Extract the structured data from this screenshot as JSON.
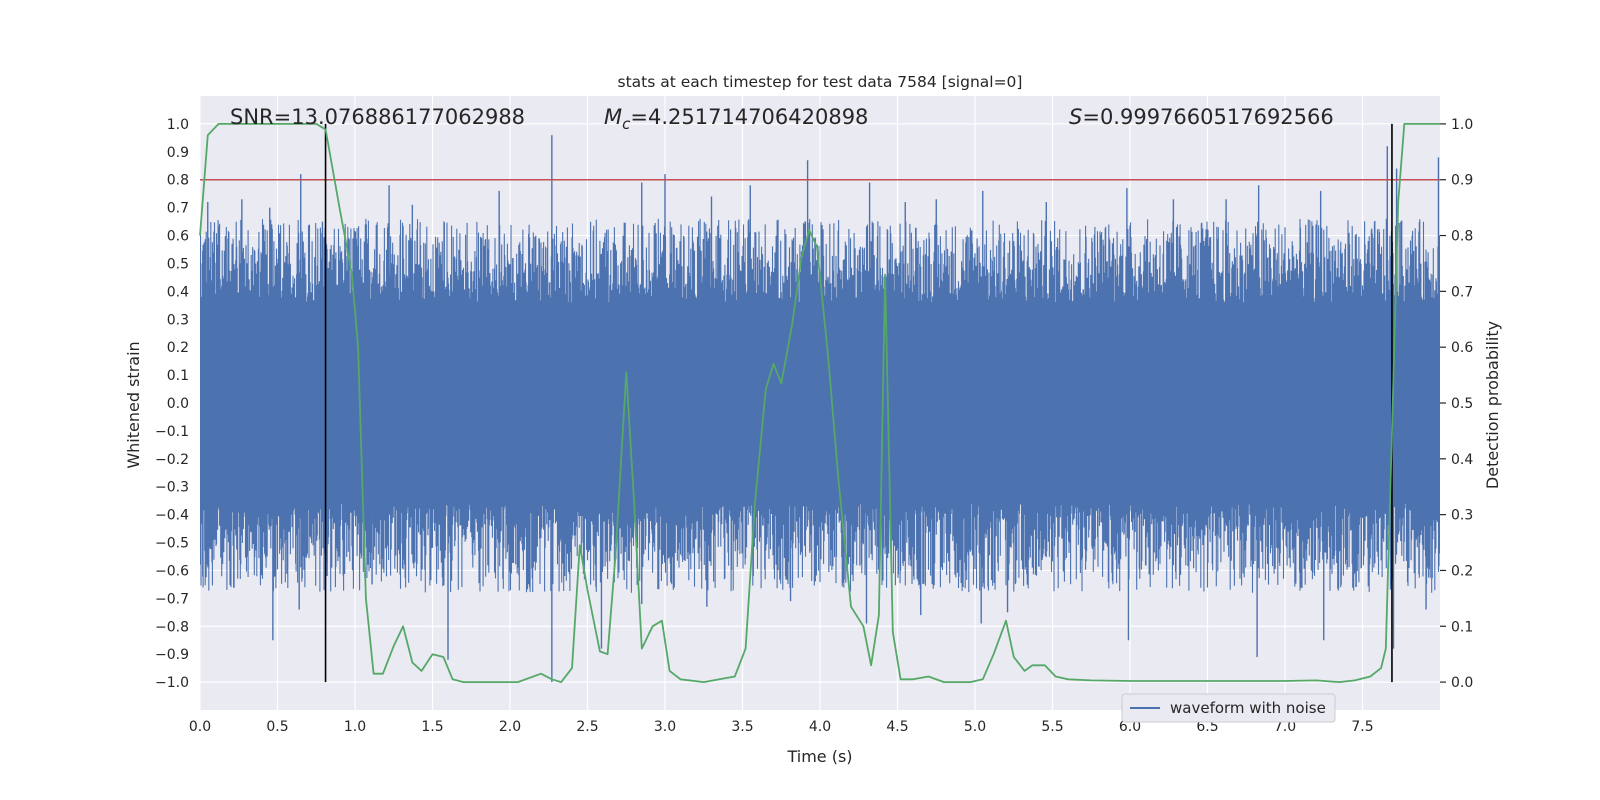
{
  "chart_data": {
    "type": "line",
    "title": "stats at each timestep for test data 7584 [signal=0]",
    "xlabel": "Time (s)",
    "ylabel": "Whitened strain",
    "y2label": "Detection probability",
    "xlim": [
      0.0,
      8.0
    ],
    "ylim": [
      -1.1,
      1.1
    ],
    "y2lim": [
      -0.05,
      1.05
    ],
    "x_ticks": [
      "0.0",
      "0.5",
      "1.0",
      "1.5",
      "2.0",
      "2.5",
      "3.0",
      "3.5",
      "4.0",
      "4.5",
      "5.0",
      "5.5",
      "6.0",
      "6.5",
      "7.0",
      "7.5"
    ],
    "y_ticks": [
      "1.0",
      "0.9",
      "0.8",
      "0.7",
      "0.6",
      "0.5",
      "0.4",
      "0.3",
      "0.2",
      "0.1",
      "0.0",
      "-0.1",
      "-0.2",
      "-0.3",
      "-0.4",
      "-0.5",
      "-0.6",
      "-0.7",
      "-0.8",
      "-0.9",
      "-1.0"
    ],
    "y2_ticks": [
      "1.0",
      "0.9",
      "0.8",
      "0.7",
      "0.6",
      "0.5",
      "0.4",
      "0.3",
      "0.2",
      "0.1",
      "0.0"
    ],
    "annotations": {
      "snr": "SNR=13.076886177062988",
      "mc_symbol": "M",
      "mc_sub": "c",
      "mc_value": "=4.251714706420898",
      "s_symbol": "S",
      "s_value": "=0.9997660517692566"
    },
    "legend": {
      "label": "waveform with noise",
      "placement": "lower-right"
    },
    "threshold": {
      "y2": 0.9,
      "color": "#c44e52"
    },
    "markers_x": [
      0.81,
      7.69
    ],
    "series": [
      {
        "name": "waveform with noise",
        "color": "#4c72b0",
        "axis": "left",
        "core_amplitude": 0.36,
        "typical_max": 0.62,
        "spikes": [
          {
            "x": 0.05,
            "y": 0.72
          },
          {
            "x": 0.27,
            "y": 0.73
          },
          {
            "x": 0.45,
            "y": 0.7
          },
          {
            "x": 0.65,
            "y": 0.82
          },
          {
            "x": 0.79,
            "y": 0.65
          },
          {
            "x": 1.22,
            "y": 0.78
          },
          {
            "x": 1.37,
            "y": 0.71
          },
          {
            "x": 1.93,
            "y": 0.76
          },
          {
            "x": 2.27,
            "y": 0.96
          },
          {
            "x": 2.85,
            "y": 0.79
          },
          {
            "x": 3.0,
            "y": 0.82
          },
          {
            "x": 3.3,
            "y": 0.74
          },
          {
            "x": 3.55,
            "y": 0.78
          },
          {
            "x": 3.92,
            "y": 0.87
          },
          {
            "x": 4.32,
            "y": 0.79
          },
          {
            "x": 4.55,
            "y": 0.72
          },
          {
            "x": 4.75,
            "y": 0.73
          },
          {
            "x": 5.05,
            "y": 0.76
          },
          {
            "x": 5.46,
            "y": 0.72
          },
          {
            "x": 5.98,
            "y": 0.77
          },
          {
            "x": 6.28,
            "y": 0.73
          },
          {
            "x": 6.62,
            "y": 0.73
          },
          {
            "x": 6.83,
            "y": 0.78
          },
          {
            "x": 7.23,
            "y": 0.76
          },
          {
            "x": 7.66,
            "y": 0.92
          },
          {
            "x": 7.72,
            "y": 0.84
          },
          {
            "x": 7.99,
            "y": 0.88
          },
          {
            "x": 0.47,
            "y": -0.85
          },
          {
            "x": 0.64,
            "y": -0.74
          },
          {
            "x": 0.82,
            "y": -0.62
          },
          {
            "x": 1.11,
            "y": -0.65
          },
          {
            "x": 1.6,
            "y": -0.92
          },
          {
            "x": 2.27,
            "y": -1.0
          },
          {
            "x": 2.59,
            "y": -0.88
          },
          {
            "x": 2.85,
            "y": -0.72
          },
          {
            "x": 3.27,
            "y": -0.73
          },
          {
            "x": 3.81,
            "y": -0.71
          },
          {
            "x": 4.3,
            "y": -0.79
          },
          {
            "x": 4.65,
            "y": -0.76
          },
          {
            "x": 5.04,
            "y": -0.79
          },
          {
            "x": 5.21,
            "y": -0.75
          },
          {
            "x": 5.99,
            "y": -0.85
          },
          {
            "x": 6.82,
            "y": -0.91
          },
          {
            "x": 7.25,
            "y": -0.85
          },
          {
            "x": 7.7,
            "y": -0.88
          },
          {
            "x": 7.91,
            "y": -0.74
          }
        ]
      },
      {
        "name": "Detection probability",
        "color": "#55a868",
        "axis": "right",
        "x": [
          0.0,
          0.05,
          0.12,
          0.25,
          0.5,
          0.75,
          0.81,
          0.9,
          0.98,
          1.02,
          1.07,
          1.12,
          1.18,
          1.25,
          1.31,
          1.37,
          1.43,
          1.5,
          1.57,
          1.63,
          1.7,
          1.85,
          2.05,
          2.2,
          2.27,
          2.33,
          2.4,
          2.45,
          2.5,
          2.58,
          2.63,
          2.68,
          2.75,
          2.8,
          2.85,
          2.92,
          2.98,
          3.03,
          3.1,
          3.25,
          3.35,
          3.45,
          3.52,
          3.58,
          3.65,
          3.7,
          3.75,
          3.82,
          3.88,
          3.93,
          3.98,
          4.05,
          4.12,
          4.2,
          4.28,
          4.33,
          4.38,
          4.42,
          4.47,
          4.52,
          4.6,
          4.7,
          4.8,
          4.9,
          4.97,
          5.05,
          5.12,
          5.2,
          5.25,
          5.32,
          5.37,
          5.45,
          5.52,
          5.6,
          5.75,
          6.0,
          6.5,
          7.0,
          7.2,
          7.35,
          7.45,
          7.55,
          7.62,
          7.65,
          7.69,
          7.73,
          7.77,
          7.83,
          7.9,
          8.0
        ],
        "y": [
          0.8,
          0.98,
          1.0,
          1.0,
          1.0,
          1.0,
          0.99,
          0.85,
          0.73,
          0.6,
          0.15,
          0.015,
          0.015,
          0.065,
          0.1,
          0.035,
          0.02,
          0.05,
          0.045,
          0.005,
          0.0,
          0.0,
          0.0,
          0.015,
          0.005,
          0.0,
          0.025,
          0.245,
          0.165,
          0.055,
          0.05,
          0.225,
          0.555,
          0.325,
          0.06,
          0.1,
          0.11,
          0.02,
          0.005,
          0.0,
          0.005,
          0.01,
          0.06,
          0.32,
          0.525,
          0.57,
          0.535,
          0.64,
          0.76,
          0.81,
          0.78,
          0.59,
          0.36,
          0.135,
          0.1,
          0.03,
          0.12,
          0.73,
          0.09,
          0.005,
          0.005,
          0.01,
          0.0,
          0.0,
          0.0,
          0.005,
          0.05,
          0.11,
          0.045,
          0.02,
          0.03,
          0.03,
          0.01,
          0.005,
          0.003,
          0.002,
          0.002,
          0.002,
          0.003,
          0.0,
          0.003,
          0.01,
          0.025,
          0.06,
          0.45,
          0.86,
          1.0,
          1.0,
          1.0,
          1.0
        ]
      }
    ]
  }
}
